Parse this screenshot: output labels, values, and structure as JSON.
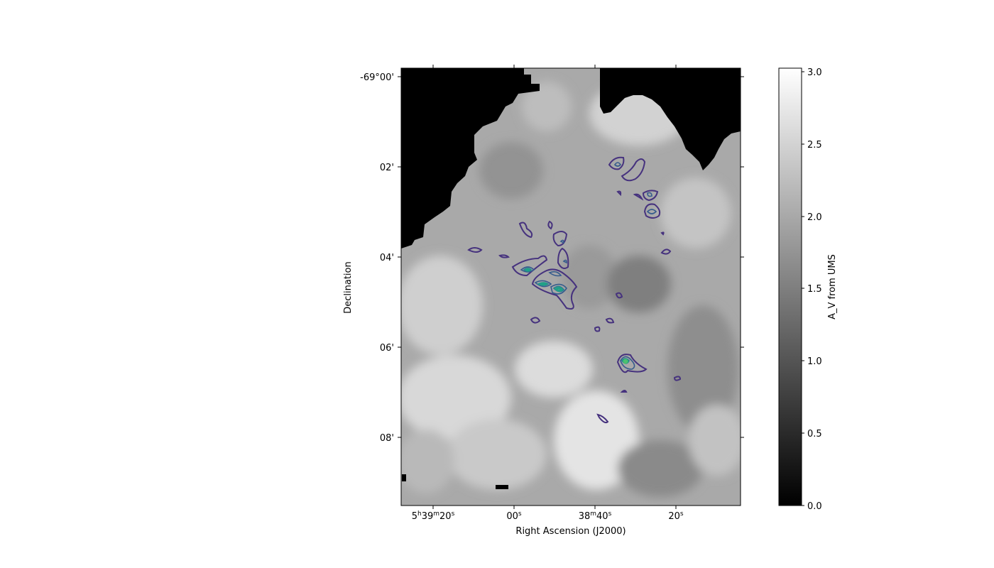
{
  "chart_data": {
    "type": "heatmap",
    "title": "",
    "xlabel": "Right Ascension (J2000)",
    "ylabel": "Declination",
    "x_ticks": [
      {
        "h": "5",
        "m": "39",
        "s": "20"
      },
      {
        "h": "",
        "m": "",
        "s": "00"
      },
      {
        "h": "",
        "m": "38",
        "s": "40"
      },
      {
        "h": "",
        "m": "",
        "s": "20"
      }
    ],
    "y_ticks": [
      "-69°00'",
      "02'",
      "04'",
      "06'",
      "08'"
    ],
    "colorbar": {
      "label": "A_V from UMS",
      "colormap": "gray",
      "range": [
        0.0,
        3.05
      ],
      "ticks": [
        "0.0",
        "0.5",
        "1.0",
        "1.5",
        "2.0",
        "2.5",
        "3.0"
      ]
    },
    "contour_colormap": "viridis",
    "contour_colors": [
      "#46327e",
      "#365c8d",
      "#277f8e",
      "#1fa187",
      "#4ac16d",
      "#a0da39"
    ],
    "map_description": "grayscale extinction map; black no-data region upper left; contours concentrated near center and lower right"
  }
}
